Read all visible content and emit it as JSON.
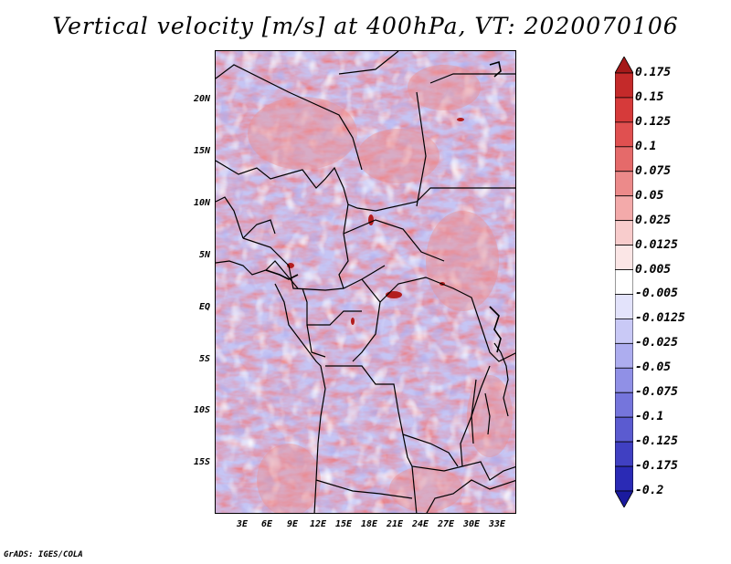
{
  "title": "Vertical velocity [m/s] at 400hPa, VT: 2020070106",
  "credit": "GrADS: IGES/COLA",
  "map": {
    "lat_ticks": [
      "20N",
      "15N",
      "10N",
      "5N",
      "EQ",
      "5S",
      "10S",
      "15S"
    ],
    "lon_ticks": [
      "3E",
      "6E",
      "9E",
      "12E",
      "15E",
      "18E",
      "21E",
      "24E",
      "27E",
      "30E",
      "33E"
    ]
  },
  "colorbar": {
    "levels": [
      "0.175",
      "0.15",
      "0.125",
      "0.1",
      "0.075",
      "0.05",
      "0.025",
      "0.0125",
      "0.005",
      "-0.005",
      "-0.0125",
      "-0.025",
      "-0.05",
      "-0.075",
      "-0.1",
      "-0.125",
      "-0.175",
      "-0.2"
    ],
    "colors": [
      "#a51a1a",
      "#c42a2a",
      "#d63a3a",
      "#e05050",
      "#e56a6a",
      "#ec8a8a",
      "#f3aaaa",
      "#f8cccc",
      "#fbe6e6",
      "#ffffff",
      "#e3e3fb",
      "#c9c9f6",
      "#adadef",
      "#9090e6",
      "#7575dc",
      "#5b5bd0",
      "#4040c2",
      "#2a2ab5",
      "#1b1b9f"
    ]
  }
}
